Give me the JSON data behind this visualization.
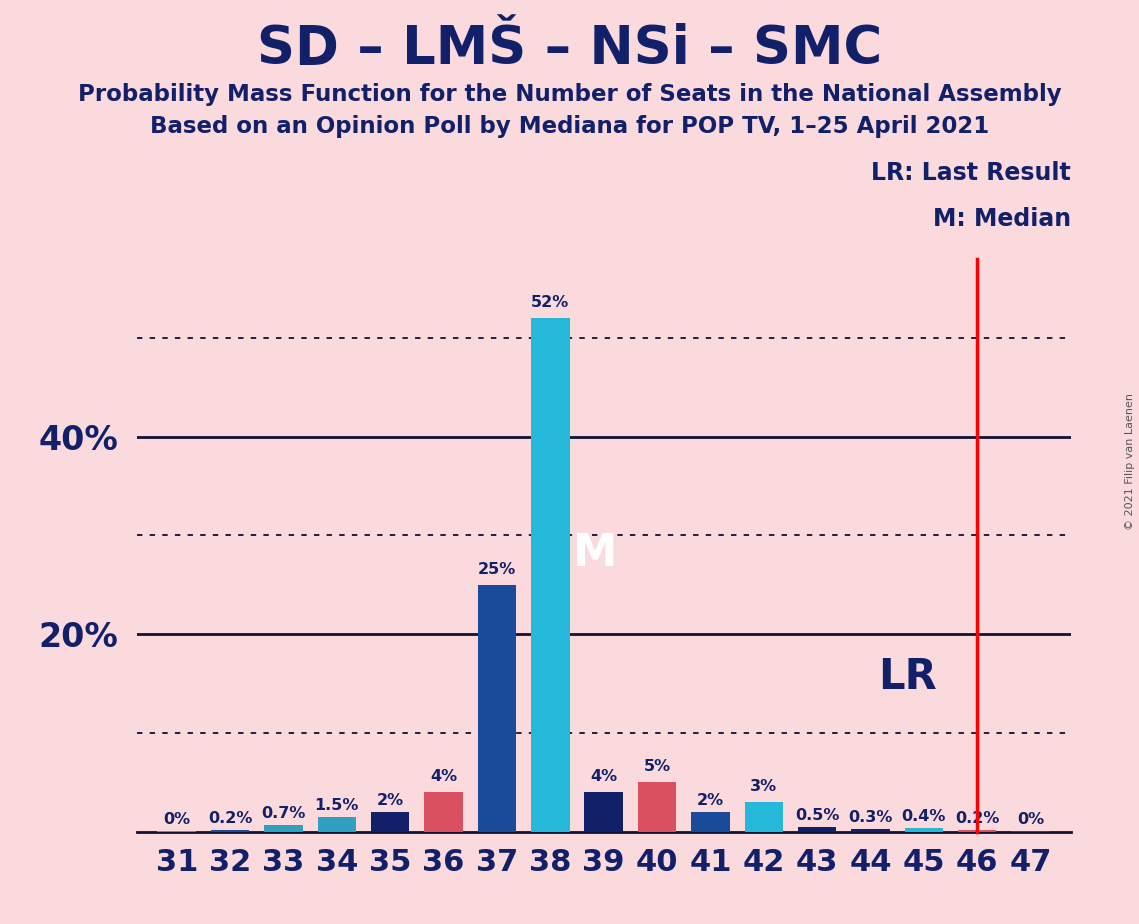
{
  "title": "SD – LMŠ – NSi – SMC",
  "subtitle1": "Probability Mass Function for the Number of Seats in the National Assembly",
  "subtitle2": "Based on an Opinion Poll by Mediana for POP TV, 1–25 April 2021",
  "copyright": "© 2021 Filip van Laenen",
  "seats": [
    31,
    32,
    33,
    34,
    35,
    36,
    37,
    38,
    39,
    40,
    41,
    42,
    43,
    44,
    45,
    46,
    47
  ],
  "values": [
    0.05,
    0.2,
    0.7,
    1.5,
    2.0,
    4.0,
    25.0,
    52.0,
    4.0,
    5.0,
    2.0,
    3.0,
    0.5,
    0.3,
    0.4,
    0.2,
    0.05
  ],
  "labels": [
    "0%",
    "0.2%",
    "0.7%",
    "1.5%",
    "2%",
    "4%",
    "25%",
    "52%",
    "4%",
    "5%",
    "2%",
    "3%",
    "0.5%",
    "0.3%",
    "0.4%",
    "0.2%",
    "0%"
  ],
  "bar_colors": [
    "#e06070",
    "#1a4a9a",
    "#30a0c0",
    "#30a0c0",
    "#12206a",
    "#d95060",
    "#1a4a9a",
    "#25b8d8",
    "#12206a",
    "#d95060",
    "#1a4a9a",
    "#25b8d8",
    "#12206a",
    "#12206a",
    "#25b8d8",
    "#d95060",
    "#1a4a9a"
  ],
  "median_seat": 38,
  "lr_seat": 46,
  "background_color": "#fadadd",
  "ylim_max": 58,
  "dotted_yticks": [
    10,
    30,
    50
  ],
  "solid_yticks": [
    20,
    40
  ],
  "ytick_labels": [
    20,
    40
  ],
  "lr_label": "LR: Last Result",
  "m_label": "M: Median",
  "lr_text": "LR",
  "m_text": "M"
}
